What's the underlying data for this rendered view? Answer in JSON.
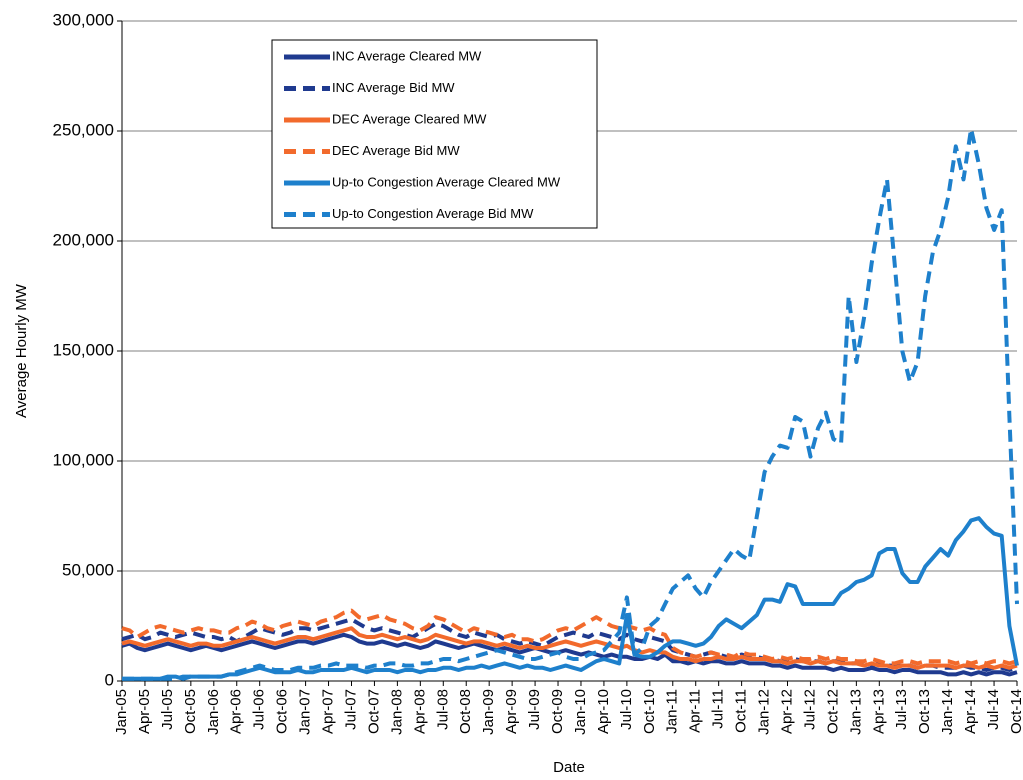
{
  "chart_data": {
    "type": "line",
    "y_label": "Average Hourly MW",
    "x_label": "Date",
    "categories": [
      "Jan-05",
      null,
      null,
      "Apr-05",
      null,
      null,
      "Jul-05",
      null,
      null,
      "Oct-05",
      null,
      null,
      "Jan-06",
      null,
      null,
      "Apr-06",
      null,
      null,
      "Jul-06",
      null,
      null,
      "Oct-06",
      null,
      null,
      "Jan-07",
      null,
      null,
      "Apr-07",
      null,
      null,
      "Jul-07",
      null,
      null,
      "Oct-07",
      null,
      null,
      "Jan-08",
      null,
      null,
      "Apr-08",
      null,
      null,
      "Jul-08",
      null,
      null,
      "Oct-08",
      null,
      null,
      "Jan-09",
      null,
      null,
      "Apr-09",
      null,
      null,
      "Jul-09",
      null,
      null,
      "Oct-09",
      null,
      null,
      "Jan-10",
      null,
      null,
      "Apr-10",
      null,
      null,
      "Jul-10",
      null,
      null,
      "Oct-10",
      null,
      null,
      "Jan-11",
      null,
      null,
      "Apr-11",
      null,
      null,
      "Jul-11",
      null,
      null,
      "Oct-11",
      null,
      null,
      "Jan-12",
      null,
      null,
      "Apr-12",
      null,
      null,
      "Jul-12",
      null,
      null,
      "Oct-12",
      null,
      null,
      "Jan-13",
      null,
      null,
      "Apr-13",
      null,
      null,
      "Jul-13",
      null,
      null,
      "Oct-13",
      null,
      null,
      "Jan-14",
      null,
      null,
      "Apr-14",
      null,
      null,
      "Jul-14",
      null,
      null,
      "Oct-14"
    ],
    "series": [
      {
        "name": "INC Average Cleared MW",
        "color": "#1f3a8f",
        "dashed": false,
        "values": [
          16000,
          17000,
          15000,
          14000,
          15000,
          16000,
          17000,
          16000,
          15000,
          14000,
          15000,
          16000,
          15000,
          14000,
          15000,
          16000,
          17000,
          18000,
          17000,
          16000,
          15000,
          16000,
          17000,
          18000,
          18000,
          17000,
          18000,
          19000,
          20000,
          21000,
          20000,
          18000,
          17000,
          17000,
          18000,
          17000,
          16000,
          17000,
          16000,
          15000,
          16000,
          18000,
          17000,
          16000,
          15000,
          16000,
          17000,
          16000,
          15000,
          14000,
          15000,
          14000,
          13000,
          14000,
          15000,
          14000,
          13000,
          13000,
          14000,
          13000,
          12000,
          13000,
          12000,
          11000,
          12000,
          11000,
          11000,
          10000,
          10000,
          11000,
          10000,
          12000,
          9000,
          9000,
          8000,
          9000,
          8000,
          9000,
          9000,
          8000,
          8000,
          9000,
          8000,
          8000,
          8000,
          7000,
          7000,
          6000,
          7000,
          6000,
          6000,
          6000,
          6000,
          5000,
          6000,
          5000,
          5000,
          5000,
          6000,
          5000,
          5000,
          4000,
          5000,
          5000,
          4000,
          4000,
          4000,
          4000,
          3000,
          3000,
          4000,
          3000,
          4000,
          3000,
          4000,
          4000,
          3000,
          4000
        ]
      },
      {
        "name": "INC Average Bid MW",
        "color": "#1f3a8f",
        "dashed": true,
        "values": [
          19000,
          20000,
          21000,
          19000,
          20000,
          22000,
          21000,
          20000,
          21000,
          22000,
          21000,
          20000,
          20000,
          19000,
          20000,
          18000,
          20000,
          22000,
          24000,
          23000,
          22000,
          21000,
          22000,
          24000,
          24000,
          23000,
          24000,
          25000,
          26000,
          27000,
          28000,
          26000,
          24000,
          23000,
          24000,
          23000,
          22000,
          21000,
          20000,
          22000,
          24000,
          26000,
          25000,
          23000,
          21000,
          20000,
          22000,
          21000,
          20000,
          21000,
          19000,
          18000,
          17000,
          18000,
          17000,
          16000,
          18000,
          20000,
          21000,
          22000,
          21000,
          20000,
          22000,
          21000,
          20000,
          19000,
          21000,
          19000,
          18000,
          20000,
          19000,
          18000,
          14000,
          13000,
          12000,
          11000,
          12000,
          13000,
          12000,
          11000,
          11000,
          12000,
          11000,
          11000,
          10000,
          10000,
          9000,
          9000,
          10000,
          9000,
          9000,
          9000,
          8000,
          9000,
          9000,
          8000,
          8000,
          8000,
          7000,
          8000,
          7000,
          7000,
          7000,
          7000,
          6000,
          7000,
          7000,
          6000,
          6000,
          6000,
          7000,
          6000,
          6000,
          5000,
          6000,
          6000,
          5000,
          6000
        ]
      },
      {
        "name": "DEC Average Cleared MW",
        "color": "#f26a2c",
        "dashed": false,
        "values": [
          17000,
          18000,
          17000,
          16000,
          17000,
          18000,
          19000,
          18000,
          17000,
          16000,
          17000,
          17000,
          16000,
          16000,
          17000,
          18000,
          19000,
          20000,
          19000,
          18000,
          17000,
          18000,
          19000,
          20000,
          20000,
          19000,
          20000,
          21000,
          22000,
          23000,
          24000,
          21000,
          20000,
          20000,
          21000,
          20000,
          19000,
          20000,
          19000,
          18000,
          19000,
          21000,
          20000,
          19000,
          18000,
          17000,
          18000,
          18000,
          17000,
          16000,
          17000,
          16000,
          15000,
          16000,
          15000,
          15000,
          16000,
          17000,
          18000,
          17000,
          16000,
          17000,
          18000,
          17000,
          16000,
          15000,
          16000,
          14000,
          13000,
          14000,
          13000,
          13000,
          11000,
          10000,
          10000,
          9000,
          10000,
          10000,
          11000,
          10000,
          10000,
          11000,
          10000,
          10000,
          10000,
          9000,
          9000,
          8000,
          9000,
          9000,
          8000,
          9000,
          8000,
          9000,
          8000,
          8000,
          8000,
          7000,
          8000,
          7000,
          7000,
          6000,
          7000,
          7000,
          6000,
          7000,
          7000,
          7000,
          7000,
          6000,
          7000,
          7000,
          6000,
          7000,
          6000,
          7000,
          6000,
          7000
        ]
      },
      {
        "name": "DEC Average Bid MW",
        "color": "#f26a2c",
        "dashed": true,
        "values": [
          24000,
          23000,
          20000,
          22000,
          24000,
          25000,
          24000,
          23000,
          22000,
          23000,
          24000,
          23000,
          23000,
          22000,
          22000,
          24000,
          25000,
          27000,
          26000,
          24000,
          23000,
          25000,
          26000,
          27000,
          26000,
          25000,
          27000,
          28000,
          29000,
          31000,
          32000,
          29000,
          28000,
          29000,
          30000,
          28000,
          27000,
          26000,
          24000,
          23000,
          25000,
          29000,
          28000,
          26000,
          24000,
          22000,
          24000,
          23000,
          22000,
          21000,
          20000,
          21000,
          19000,
          19000,
          18000,
          19000,
          21000,
          23000,
          24000,
          23000,
          25000,
          27000,
          29000,
          27000,
          25000,
          24000,
          25000,
          24000,
          23000,
          24000,
          22000,
          21000,
          15000,
          13000,
          12000,
          11000,
          12000,
          13000,
          12000,
          12000,
          11000,
          13000,
          12000,
          12000,
          11000,
          10000,
          11000,
          10000,
          11000,
          10000,
          10000,
          11000,
          10000,
          11000,
          10000,
          10000,
          9000,
          9000,
          10000,
          9000,
          8000,
          8000,
          9000,
          9000,
          8000,
          9000,
          9000,
          9000,
          9000,
          8000,
          9000,
          8000,
          9000,
          8000,
          9000,
          9000,
          8000,
          9000
        ]
      },
      {
        "name": "Up-to Congestion Average Cleared MW",
        "color": "#1e80cc",
        "dashed": false,
        "values": [
          1000,
          1000,
          1000,
          1000,
          1000,
          1000,
          2000,
          2000,
          1000,
          2000,
          2000,
          2000,
          2000,
          2000,
          3000,
          3000,
          4000,
          5000,
          6000,
          5000,
          4000,
          4000,
          4000,
          5000,
          4000,
          4000,
          5000,
          5000,
          5000,
          5000,
          6000,
          5000,
          4000,
          5000,
          5000,
          5000,
          4000,
          5000,
          5000,
          4000,
          5000,
          5000,
          6000,
          6000,
          5000,
          6000,
          6000,
          7000,
          6000,
          7000,
          8000,
          7000,
          6000,
          7000,
          6000,
          6000,
          5000,
          6000,
          7000,
          6000,
          5000,
          7000,
          9000,
          10000,
          9000,
          8000,
          30000,
          12000,
          11000,
          11000,
          13000,
          16000,
          18000,
          18000,
          17000,
          16000,
          17000,
          20000,
          25000,
          28000,
          26000,
          24000,
          27000,
          30000,
          37000,
          37000,
          36000,
          44000,
          43000,
          35000,
          35000,
          35000,
          35000,
          35000,
          40000,
          42000,
          45000,
          46000,
          48000,
          58000,
          60000,
          60000,
          49000,
          45000,
          45000,
          52000,
          56000,
          60000,
          57000,
          64000,
          68000,
          73000,
          74000,
          70000,
          67000,
          66000,
          25000,
          7000
        ]
      },
      {
        "name": "Up-to Congestion Average Bid MW",
        "color": "#1e80cc",
        "dashed": true,
        "values": [
          1000,
          1000,
          1000,
          1000,
          1000,
          1000,
          1000,
          1000,
          2000,
          2000,
          2000,
          2000,
          2000,
          2000,
          3000,
          4000,
          5000,
          6000,
          7000,
          6000,
          5000,
          5000,
          5000,
          6000,
          6000,
          6000,
          7000,
          7000,
          8000,
          7000,
          7000,
          7000,
          6000,
          7000,
          7000,
          8000,
          8000,
          7000,
          7000,
          8000,
          8000,
          9000,
          10000,
          10000,
          9000,
          10000,
          11000,
          12000,
          13000,
          14000,
          13000,
          12000,
          11000,
          10000,
          10000,
          11000,
          12000,
          13000,
          11000,
          10000,
          10000,
          12000,
          13000,
          14000,
          18000,
          22000,
          38000,
          12000,
          15000,
          25000,
          28000,
          35000,
          42000,
          45000,
          48000,
          42000,
          38000,
          45000,
          50000,
          55000,
          60000,
          57000,
          55000,
          75000,
          95000,
          102000,
          107000,
          106000,
          120000,
          118000,
          102000,
          115000,
          122000,
          110000,
          108000,
          175000,
          145000,
          165000,
          190000,
          210000,
          228000,
          190000,
          150000,
          136000,
          145000,
          175000,
          195000,
          205000,
          220000,
          243000,
          228000,
          251000,
          235000,
          215000,
          205000,
          214000,
          120000,
          35000
        ]
      }
    ],
    "ylim": [
      0,
      300000
    ],
    "yticks": [
      0,
      {
        "value": 50000,
        "label": "50,000"
      },
      {
        "value": 100000,
        "label": "100,000"
      },
      {
        "value": 150000,
        "label": "150,000"
      },
      {
        "value": 200000,
        "label": "200,000"
      },
      {
        "value": 250000,
        "label": "250,000"
      },
      {
        "value": 300000,
        "label": "300,000"
      }
    ],
    "grid": true,
    "legend": "upper left"
  }
}
